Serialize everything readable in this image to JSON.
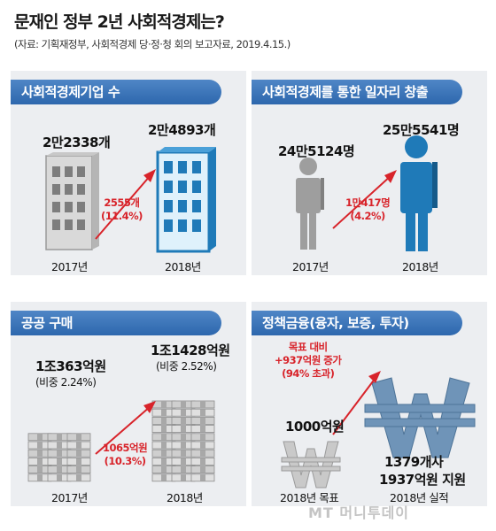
{
  "header": {
    "title": "문재인 정부 2년 사회적경제는?",
    "source": "(자료: 기획재정부, 사회적경제 당·정·청 회의 보고자료, 2019.4.15.)"
  },
  "colors": {
    "accent": "#2d67ad",
    "highlight": "#d8232a",
    "panel_bg": "#eceef1"
  },
  "chart_data": [
    {
      "type": "bar",
      "title": "사회적경제기업 수",
      "categories": [
        "2017년",
        "2018년"
      ],
      "values": [
        22338,
        24893
      ],
      "value_labels": [
        "2만2338개",
        "2만4893개"
      ],
      "change": "2555개",
      "change_pct": "(11.4%)"
    },
    {
      "type": "bar",
      "title": "사회적경제를 통한 일자리 창출",
      "categories": [
        "2017년",
        "2018년"
      ],
      "values": [
        245124,
        255541
      ],
      "value_labels": [
        "24만5124명",
        "25만5541명"
      ],
      "change": "1만417명",
      "change_pct": "(4.2%)"
    },
    {
      "type": "bar",
      "title": "공공 구매",
      "categories": [
        "2017년",
        "2018년"
      ],
      "values": [
        10363,
        11428
      ],
      "value_labels": [
        "1조363억원",
        "1조1428억원"
      ],
      "shares": [
        "(비중 2.24%)",
        "(비중 2.52%)"
      ],
      "change": "1065억원",
      "change_pct": "(10.3%)"
    },
    {
      "type": "bar",
      "title": "정책금융(융자, 보증, 투자)",
      "categories": [
        "2018년 목표",
        "2018년 실적"
      ],
      "values": [
        1000,
        1937
      ],
      "value_labels": [
        "1000억원",
        "1937억원 지원"
      ],
      "cases": "1379개사",
      "note": [
        "목표 대비",
        "+937억원 증가",
        "(94% 초과)"
      ]
    }
  ],
  "watermark": "MT 머니투데이"
}
